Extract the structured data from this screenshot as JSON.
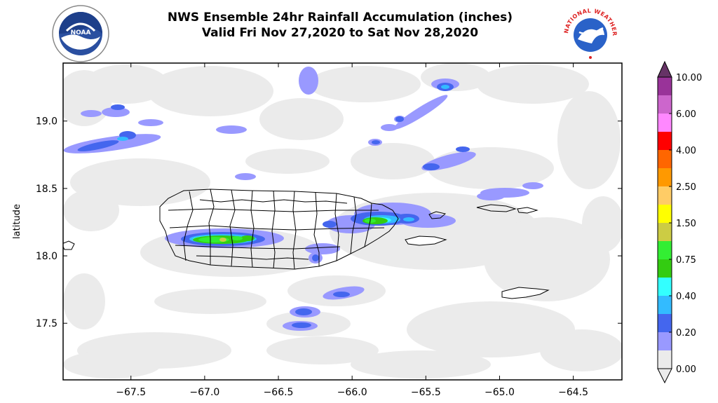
{
  "header": {
    "title_line1": "NWS Ensemble 24hr Rainfall Accumulation (inches)",
    "title_line2": "Valid Fri Nov 27,2020 to Sat Nov 28,2020",
    "left_logo": {
      "name": "NOAA",
      "icon": "noaa-logo"
    },
    "right_logo": {
      "name": "NATIONAL WEATHER SERVICE",
      "icon": "nws-logo"
    }
  },
  "map": {
    "ylabel": "latitude",
    "xlim": [
      -67.96,
      -64.17
    ],
    "ylim": [
      17.08,
      19.43
    ],
    "x_ticks": [
      -67.5,
      -67.0,
      -66.5,
      -66.0,
      -65.5,
      -65.0,
      -64.5
    ],
    "x_tick_labels": [
      "−67.5",
      "−67.0",
      "−66.5",
      "−66.0",
      "−65.5",
      "−65.0",
      "−64.5"
    ],
    "y_ticks": [
      17.5,
      18.0,
      18.5,
      19.0
    ],
    "y_tick_labels": [
      "17.5",
      "18.0",
      "18.5",
      "19.0"
    ]
  },
  "colorbar": {
    "levels": [
      "0.00",
      "0.10",
      "0.20",
      "0.30",
      "0.40",
      "0.50",
      "0.75",
      "1.00",
      "1.50",
      "2.00",
      "2.50",
      "3.00",
      "4.00",
      "5.00",
      "6.00",
      "8.00",
      "10.00"
    ],
    "tick_labels": [
      "0.00",
      "0.20",
      "0.40",
      "0.75",
      "1.50",
      "2.50",
      "4.00",
      "6.00",
      "10.00"
    ],
    "colors": [
      "#ebebeb",
      "#9999ff",
      "#4466ee",
      "#33bbff",
      "#33ffff",
      "#33cc11",
      "#33ee33",
      "#cccc44",
      "#ffff00",
      "#ffcc66",
      "#ff9900",
      "#ff6600",
      "#ff0000",
      "#ff88ff",
      "#cc66cc",
      "#993399"
    ],
    "extend_color": "#663366"
  }
}
